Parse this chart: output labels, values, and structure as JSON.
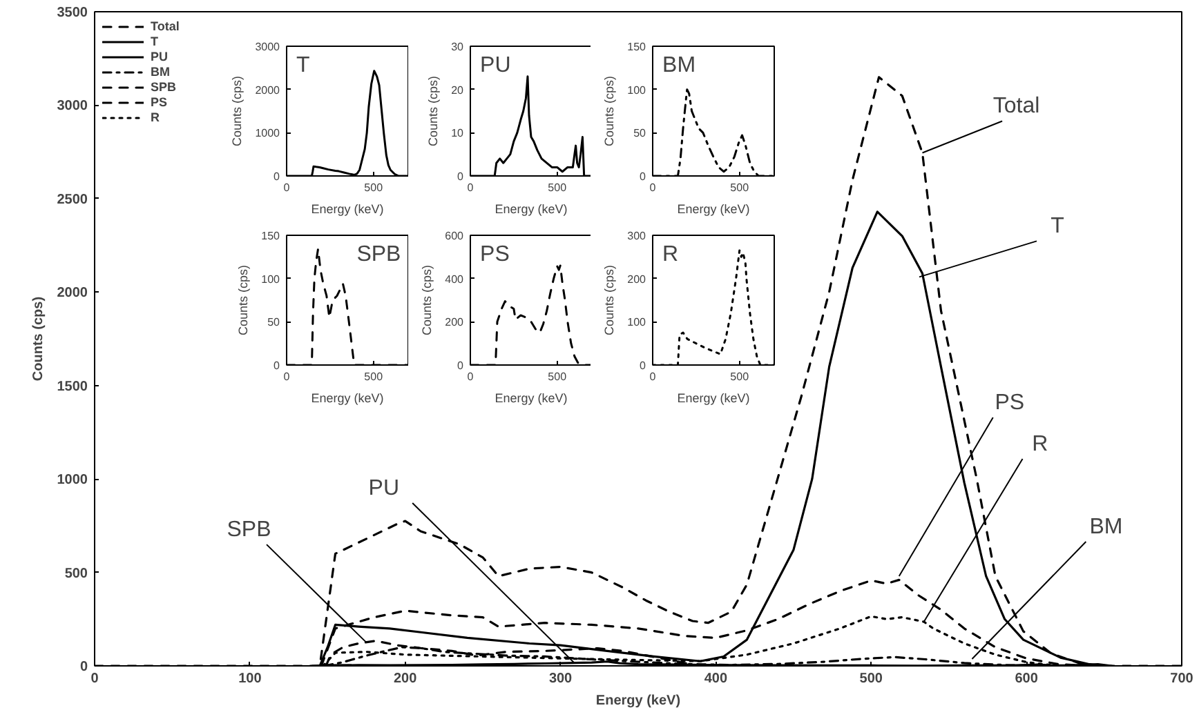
{
  "chart_data": [
    {
      "type": "line",
      "xlabel": "Energy (keV)",
      "ylabel": "Counts (cps)",
      "xlim": [
        0,
        700
      ],
      "xticks": [
        0,
        100,
        200,
        300,
        400,
        500,
        600,
        700
      ],
      "ylim": [
        0,
        3500
      ],
      "yticks": [
        0,
        500,
        1000,
        1500,
        2000,
        2500,
        3000,
        3500
      ],
      "legend": "top left",
      "series": [
        {
          "name": "Total",
          "color": "#000000",
          "line_style": "dashed",
          "x": [
            0,
            145,
            150,
            155,
            165,
            180,
            195,
            200,
            210,
            235,
            250,
            260,
            280,
            300,
            320,
            340,
            355,
            370,
            385,
            395,
            410,
            420,
            438,
            455,
            473,
            488,
            505,
            520,
            533,
            545,
            568,
            580,
            598,
            616,
            634,
            650,
            700
          ],
          "values": [
            0,
            0,
            300,
            600,
            640,
            700,
            760,
            775,
            720,
            650,
            580,
            480,
            520,
            530,
            500,
            420,
            350,
            290,
            240,
            230,
            290,
            435,
            950,
            1440,
            2000,
            2600,
            3150,
            3050,
            2745,
            1900,
            1000,
            480,
            185,
            66,
            15,
            0,
            0
          ]
        },
        {
          "name": "T",
          "color": "#000000",
          "line_style": "solid",
          "x": [
            145,
            150,
            155,
            170,
            190,
            210,
            240,
            280,
            300,
            330,
            360,
            390,
            405,
            420,
            435,
            450,
            462,
            473,
            488,
            504,
            520,
            533,
            545,
            560,
            574,
            586,
            598,
            622,
            645
          ],
          "values": [
            0,
            100,
            220,
            210,
            200,
            180,
            150,
            120,
            110,
            80,
            50,
            25,
            50,
            140,
            380,
            620,
            1000,
            1600,
            2130,
            2430,
            2300,
            2100,
            1600,
            980,
            480,
            250,
            140,
            44,
            0
          ]
        },
        {
          "name": "PU",
          "color": "#000000",
          "line_style": "solid",
          "x": [
            140,
            150,
            170,
            190,
            210,
            230,
            250,
            270,
            290,
            305,
            320,
            330,
            338,
            350,
            365,
            385,
            410,
            440,
            470,
            500,
            530,
            560,
            590,
            600,
            607,
            615,
            625,
            635,
            646,
            655
          ],
          "values": [
            0,
            3,
            4,
            3,
            4,
            5,
            8,
            10,
            13,
            15,
            18,
            23,
            14,
            9,
            8,
            6,
            4,
            3,
            2,
            2,
            1,
            2,
            2,
            5,
            7,
            3,
            2,
            5,
            9,
            0
          ]
        },
        {
          "name": "BM",
          "color": "#000000",
          "line_style": "dashdot",
          "x": [
            148,
            160,
            175,
            190,
            198,
            210,
            225,
            245,
            265,
            290,
            320,
            350,
            380,
            409,
            440,
            470,
            495,
            515,
            535,
            560,
            585,
            610
          ],
          "values": [
            0,
            20,
            55,
            85,
            100,
            95,
            75,
            65,
            55,
            50,
            35,
            22,
            10,
            5,
            10,
            22,
            38,
            47,
            35,
            15,
            5,
            0
          ]
        },
        {
          "name": "SPB",
          "color": "#000000",
          "line_style": "dashed",
          "x": [
            149,
            152,
            160,
            170,
            181,
            195,
            210,
            230,
            246,
            265,
            290,
            324,
            340,
            365,
            389
          ],
          "values": [
            0,
            60,
            100,
            120,
            134,
            110,
            95,
            80,
            55,
            75,
            80,
            94,
            80,
            40,
            0
          ]
        },
        {
          "name": "PS",
          "color": "#000000",
          "line_style": "dashed",
          "x": [
            146,
            155,
            180,
            200,
            230,
            250,
            260,
            290,
            320,
            350,
            380,
            400,
            420,
            440,
            460,
            480,
            500,
            510,
            518,
            530,
            545,
            560,
            580,
            600,
            620,
            640
          ],
          "values": [
            0,
            200,
            260,
            295,
            270,
            260,
            210,
            230,
            220,
            200,
            160,
            150,
            190,
            250,
            330,
            400,
            457,
            440,
            460,
            380,
            300,
            200,
            100,
            40,
            10,
            0
          ]
        },
        {
          "name": "R",
          "color": "#000000",
          "line_style": "dotted",
          "x": [
            147,
            155,
            175,
            200,
            250,
            300,
            360,
            390,
            420,
            450,
            480,
            500,
            510,
            520,
            534,
            540,
            560,
            580,
            600,
            620
          ],
          "values": [
            0,
            70,
            75,
            60,
            50,
            40,
            30,
            25,
            60,
            120,
            200,
            265,
            250,
            260,
            236,
            200,
            120,
            60,
            20,
            0
          ]
        }
      ],
      "annotations": [
        {
          "text": "Total",
          "x": 533,
          "y": 2745
        },
        {
          "text": "T",
          "x": 531,
          "y": 2081
        },
        {
          "text": "PS",
          "x": 518,
          "y": 480
        },
        {
          "text": "R",
          "x": 534,
          "y": 236
        },
        {
          "text": "BM",
          "x": 565,
          "y": 37
        },
        {
          "text": "PU",
          "x": 309,
          "y": 15
        },
        {
          "text": "SPB",
          "x": 175,
          "y": 125
        }
      ]
    },
    {
      "type": "line",
      "title": "T",
      "xlabel": "Energy (keV)",
      "ylabel": "Counts (cps)",
      "xlim": [
        0,
        700
      ],
      "xticks": [
        0,
        500
      ],
      "ylim": [
        0,
        3000
      ],
      "yticks": [
        0,
        1000,
        2000,
        3000
      ],
      "series": [
        {
          "color": "#000000",
          "line_style": "solid",
          "x": [
            0,
            145,
            150,
            155,
            170,
            190,
            210,
            240,
            280,
            300,
            330,
            360,
            390,
            405,
            420,
            435,
            450,
            462,
            473,
            488,
            504,
            520,
            533,
            545,
            560,
            574,
            586,
            598,
            622,
            645,
            700
          ],
          "values": [
            0,
            0,
            100,
            220,
            210,
            200,
            180,
            150,
            120,
            110,
            80,
            50,
            25,
            50,
            140,
            380,
            620,
            1000,
            1600,
            2130,
            2430,
            2300,
            2100,
            1600,
            980,
            480,
            250,
            140,
            44,
            0,
            0
          ]
        }
      ]
    },
    {
      "type": "line",
      "title": "PU",
      "xlabel": "Energy (keV)",
      "ylabel": "Counts (cps)",
      "xlim": [
        0,
        700
      ],
      "xticks": [
        0,
        500
      ],
      "ylim": [
        0,
        30
      ],
      "yticks": [
        0,
        10,
        20,
        30
      ],
      "series": [
        {
          "color": "#000000",
          "line_style": "solid",
          "x": [
            0,
            140,
            150,
            170,
            190,
            210,
            230,
            250,
            270,
            290,
            305,
            320,
            330,
            338,
            350,
            365,
            385,
            410,
            440,
            470,
            500,
            530,
            560,
            590,
            600,
            607,
            615,
            625,
            635,
            646,
            655,
            700
          ],
          "values": [
            0,
            0,
            3,
            4,
            3,
            4,
            5,
            8,
            10,
            13,
            15,
            18,
            23,
            14,
            9,
            8,
            6,
            4,
            3,
            2,
            2,
            1,
            2,
            2,
            5,
            7,
            3,
            2,
            5,
            9,
            0,
            0
          ]
        }
      ]
    },
    {
      "type": "line",
      "title": "BM",
      "xlabel": "Energy (keV)",
      "ylabel": "Counts (cps)",
      "xlim": [
        0,
        700
      ],
      "xticks": [
        0,
        500
      ],
      "ylim": [
        0,
        150
      ],
      "yticks": [
        0,
        50,
        100,
        150
      ],
      "series": [
        {
          "color": "#000000",
          "line_style": "dashdot",
          "x": [
            0,
            145,
            160,
            175,
            190,
            198,
            210,
            225,
            245,
            265,
            290,
            320,
            350,
            380,
            409,
            440,
            470,
            495,
            515,
            535,
            560,
            585,
            610,
            700
          ],
          "values": [
            0,
            0,
            20,
            55,
            85,
            100,
            95,
            75,
            65,
            55,
            50,
            35,
            22,
            10,
            5,
            10,
            22,
            38,
            47,
            35,
            15,
            5,
            0,
            0
          ]
        }
      ]
    },
    {
      "type": "line",
      "title": "SPB",
      "xlabel": "Energy (keV)",
      "ylabel": "Counts (cps)",
      "xlim": [
        0,
        700
      ],
      "xticks": [
        0,
        500
      ],
      "ylim": [
        0,
        150
      ],
      "yticks": [
        0,
        50,
        100,
        150
      ],
      "series": [
        {
          "color": "#000000",
          "line_style": "dashed",
          "x": [
            0,
            145,
            152,
            160,
            170,
            181,
            195,
            210,
            230,
            246,
            265,
            290,
            324,
            340,
            365,
            389,
            700
          ],
          "values": [
            0,
            0,
            60,
            100,
            120,
            134,
            110,
            95,
            80,
            55,
            75,
            80,
            94,
            80,
            40,
            0,
            0
          ]
        }
      ]
    },
    {
      "type": "line",
      "title": "PS",
      "xlabel": "Energy (keV)",
      "ylabel": "Counts (cps)",
      "xlim": [
        0,
        700
      ],
      "xticks": [
        0,
        500
      ],
      "ylim": [
        0,
        600
      ],
      "yticks": [
        0,
        200,
        400,
        600
      ],
      "series": [
        {
          "color": "#000000",
          "line_style": "dashed",
          "x": [
            0,
            145,
            155,
            180,
            200,
            230,
            250,
            260,
            290,
            320,
            350,
            380,
            400,
            420,
            440,
            460,
            480,
            500,
            510,
            518,
            530,
            545,
            560,
            580,
            600,
            620,
            640,
            700
          ],
          "values": [
            0,
            0,
            200,
            260,
            295,
            270,
            260,
            210,
            230,
            220,
            200,
            160,
            150,
            190,
            250,
            330,
            400,
            457,
            440,
            460,
            380,
            300,
            200,
            100,
            40,
            10,
            0,
            0
          ]
        }
      ]
    },
    {
      "type": "line",
      "title": "R",
      "xlabel": "Energy (keV)",
      "ylabel": "Counts (cps)",
      "xlim": [
        0,
        700
      ],
      "xticks": [
        0,
        500
      ],
      "ylim": [
        0,
        300
      ],
      "yticks": [
        0,
        100,
        200,
        300
      ],
      "series": [
        {
          "color": "#000000",
          "line_style": "dotted",
          "x": [
            0,
            145,
            155,
            175,
            200,
            250,
            300,
            360,
            390,
            420,
            450,
            480,
            500,
            510,
            520,
            534,
            540,
            560,
            580,
            600,
            620,
            700
          ],
          "values": [
            0,
            0,
            70,
            75,
            60,
            50,
            40,
            30,
            25,
            60,
            120,
            200,
            265,
            250,
            260,
            236,
            200,
            120,
            60,
            20,
            0,
            0
          ]
        }
      ]
    }
  ]
}
